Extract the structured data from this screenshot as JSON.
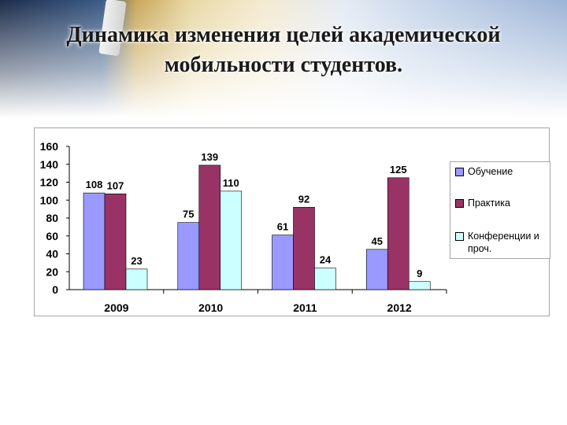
{
  "slide": {
    "title_line1": "Динамика изменения целей академической",
    "title_line2": "мобильности студентов."
  },
  "chart_data": {
    "type": "bar",
    "categories": [
      "2009",
      "2010",
      "2011",
      "2012"
    ],
    "series": [
      {
        "name": "Обучение",
        "values": [
          108,
          75,
          61,
          45
        ],
        "color": "#9999ff"
      },
      {
        "name": "Практика",
        "values": [
          107,
          139,
          92,
          125
        ],
        "color": "#993366"
      },
      {
        "name": "Конференции и проч.",
        "values": [
          23,
          110,
          24,
          9
        ],
        "color": "#ccffff"
      }
    ],
    "ylim": [
      0,
      160
    ],
    "yticks": [
      0,
      20,
      40,
      60,
      80,
      100,
      120,
      140,
      160
    ],
    "legend_position": "right",
    "grid": false,
    "data_labels": true
  }
}
